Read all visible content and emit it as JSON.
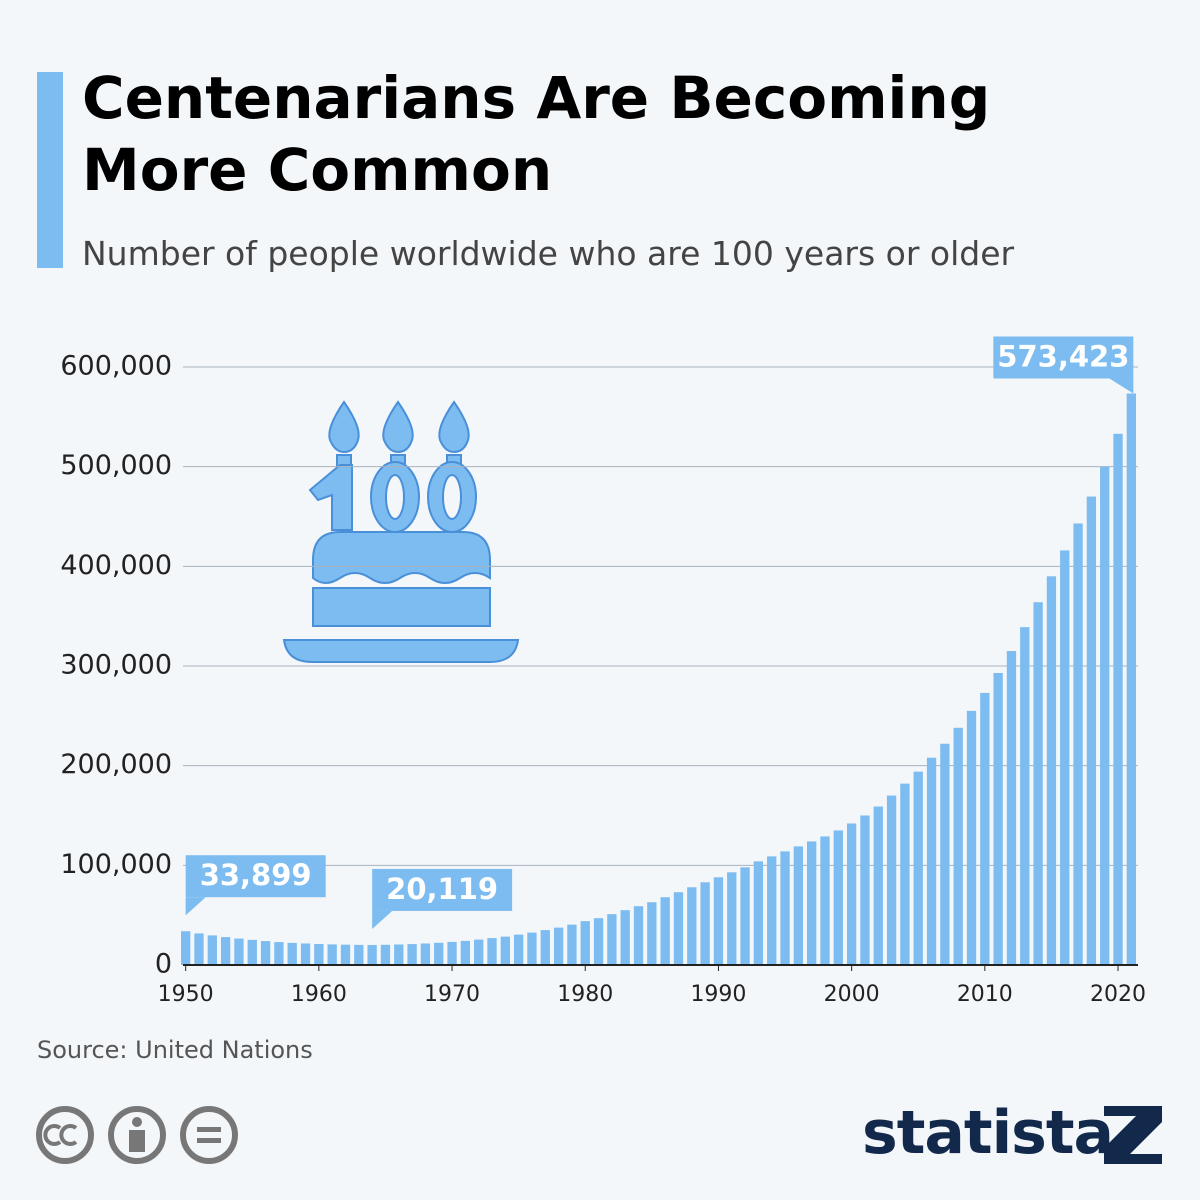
{
  "chart_data": {
    "type": "bar",
    "title": "Centenarians Are Becoming More Common",
    "subtitle": "Number of people worldwide who are 100 years or older",
    "source": "Source: United Nations",
    "brand": "statista",
    "color": "#7dbcf0",
    "grid": true,
    "x": [
      1950,
      1951,
      1952,
      1953,
      1954,
      1955,
      1956,
      1957,
      1958,
      1959,
      1960,
      1961,
      1962,
      1963,
      1964,
      1965,
      1966,
      1967,
      1968,
      1969,
      1970,
      1971,
      1972,
      1973,
      1974,
      1975,
      1976,
      1977,
      1978,
      1979,
      1980,
      1981,
      1982,
      1983,
      1984,
      1985,
      1986,
      1987,
      1988,
      1989,
      1990,
      1991,
      1992,
      1993,
      1994,
      1995,
      1996,
      1997,
      1998,
      1999,
      2000,
      2001,
      2002,
      2003,
      2004,
      2005,
      2006,
      2007,
      2008,
      2009,
      2010,
      2011,
      2012,
      2013,
      2014,
      2015,
      2016,
      2017,
      2018,
      2019,
      2020,
      2021
    ],
    "values": [
      33899,
      31700,
      29700,
      28000,
      26500,
      25200,
      24000,
      23000,
      22200,
      21600,
      21100,
      20700,
      20400,
      20200,
      20119,
      20300,
      20600,
      21000,
      21600,
      22300,
      23200,
      24200,
      25500,
      27000,
      28500,
      30500,
      32500,
      35000,
      37500,
      40500,
      44000,
      47000,
      51000,
      55000,
      59000,
      63000,
      68000,
      73000,
      78000,
      83000,
      88000,
      93000,
      98000,
      104000,
      109000,
      114000,
      119000,
      124000,
      129000,
      135000,
      142000,
      150000,
      159000,
      170000,
      182000,
      194000,
      208000,
      222000,
      238000,
      255000,
      273000,
      293000,
      315000,
      339000,
      364000,
      390000,
      416000,
      443000,
      470000,
      500000,
      533000,
      573423
    ],
    "value_labels": [
      "33,899",
      null,
      null,
      null,
      null,
      null,
      null,
      null,
      null,
      null,
      null,
      null,
      null,
      null,
      "20,119",
      null,
      null,
      null,
      null,
      null,
      null,
      null,
      null,
      null,
      null,
      null,
      null,
      null,
      null,
      null,
      null,
      null,
      null,
      null,
      null,
      null,
      null,
      null,
      null,
      null,
      null,
      null,
      null,
      null,
      null,
      null,
      null,
      null,
      null,
      null,
      null,
      null,
      null,
      null,
      null,
      null,
      null,
      null,
      null,
      null,
      null,
      null,
      null,
      null,
      null,
      null,
      null,
      null,
      null,
      null,
      null,
      "573,423"
    ],
    "xlim": [
      1949.5,
      2021.5
    ],
    "xticks": [
      1950,
      1960,
      1970,
      1980,
      1990,
      2000,
      2010,
      2020
    ],
    "ylim": [
      0,
      600000
    ],
    "yticks": [
      0,
      {
        "value": 100000,
        "label": "100,000"
      },
      {
        "value": 200000,
        "label": "200,000"
      },
      {
        "value": 300000,
        "label": "300,000"
      },
      {
        "value": 400000,
        "label": "400,000"
      },
      {
        "value": 500000,
        "label": "500,000"
      },
      {
        "value": 600000,
        "label": "600,000"
      }
    ]
  }
}
